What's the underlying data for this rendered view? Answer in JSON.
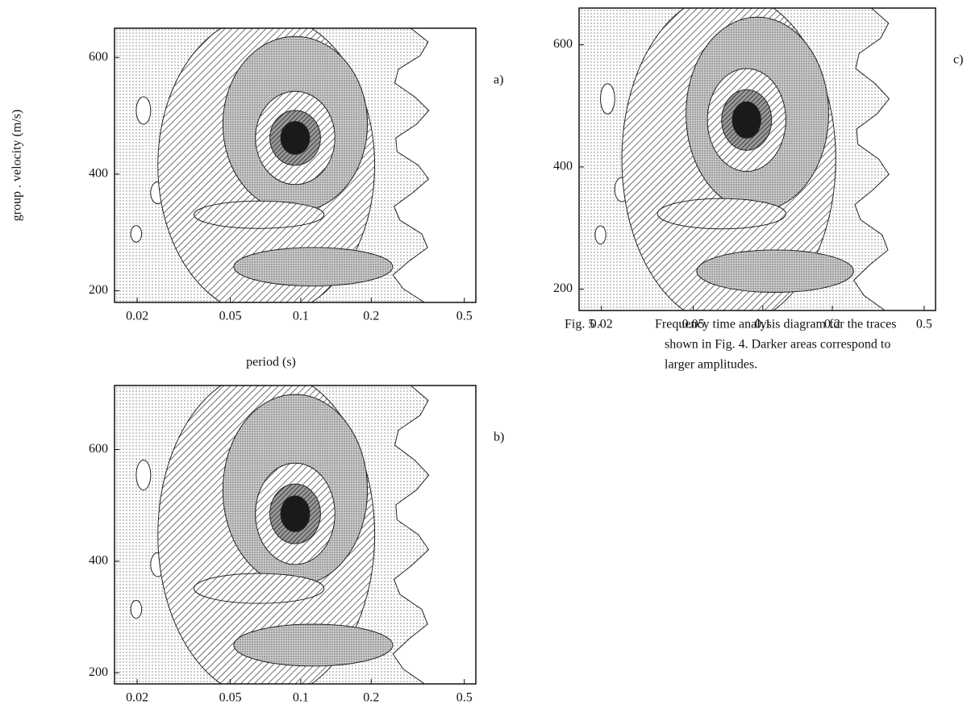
{
  "chart_data": [
    {
      "type": "contour",
      "panel_label": "a)",
      "y_label": "group . velocity (m/s)",
      "x_label": "period (s)",
      "xscale": "log",
      "xlim": [
        0.016,
        0.56
      ],
      "ylim": [
        180,
        650
      ],
      "xticks": [
        0.02,
        0.05,
        0.1,
        0.2,
        0.5
      ],
      "yticks": [
        200,
        400,
        600
      ]
    },
    {
      "type": "contour",
      "panel_label": "c)",
      "xscale": "log",
      "xlim": [
        0.016,
        0.56
      ],
      "ylim": [
        165,
        660
      ],
      "xticks": [
        0.02,
        0.05,
        0.1,
        0.2,
        0.5
      ],
      "yticks": [
        200,
        400,
        600
      ]
    },
    {
      "type": "contour",
      "panel_label": "b)",
      "xscale": "log",
      "xlim": [
        0.016,
        0.56
      ],
      "ylim": [
        180,
        715
      ],
      "xticks": [
        0.02,
        0.05,
        0.1,
        0.2,
        0.5
      ],
      "yticks": [
        200,
        400,
        600
      ]
    }
  ],
  "caption": {
    "label": "Fig.   5 -",
    "lines": [
      "Frequency time analysis diagram for the traces",
      "shown in Fig. 4. Darker areas correspond to",
      "larger  amplitudes."
    ]
  }
}
